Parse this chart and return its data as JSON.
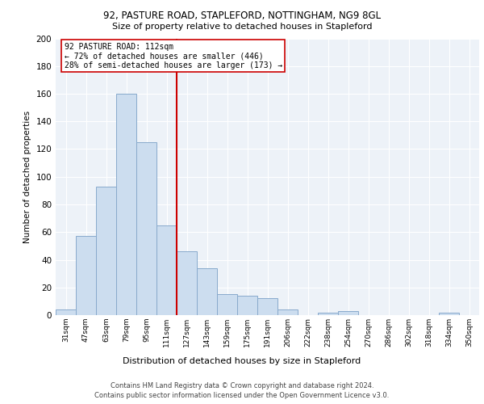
{
  "title1": "92, PASTURE ROAD, STAPLEFORD, NOTTINGHAM, NG9 8GL",
  "title2": "Size of property relative to detached houses in Stapleford",
  "xlabel": "Distribution of detached houses by size in Stapleford",
  "ylabel": "Number of detached properties",
  "footnote1": "Contains HM Land Registry data © Crown copyright and database right 2024.",
  "footnote2": "Contains public sector information licensed under the Open Government Licence v3.0.",
  "annotation_line1": "92 PASTURE ROAD: 112sqm",
  "annotation_line2": "← 72% of detached houses are smaller (446)",
  "annotation_line3": "28% of semi-detached houses are larger (173) →",
  "bar_labels": [
    "31sqm",
    "47sqm",
    "63sqm",
    "79sqm",
    "95sqm",
    "111sqm",
    "127sqm",
    "143sqm",
    "159sqm",
    "175sqm",
    "191sqm",
    "206sqm",
    "222sqm",
    "238sqm",
    "254sqm",
    "270sqm",
    "286sqm",
    "302sqm",
    "318sqm",
    "334sqm",
    "350sqm"
  ],
  "bar_values": [
    4,
    57,
    93,
    160,
    125,
    65,
    46,
    34,
    15,
    14,
    12,
    4,
    0,
    2,
    3,
    0,
    0,
    0,
    0,
    2,
    0
  ],
  "bar_color": "#ccddef",
  "bar_edge_color": "#88aacc",
  "vline_color": "#cc0000",
  "vline_x": 5,
  "box_color": "#cc0000",
  "bg_color": "#edf2f8",
  "ylim": [
    0,
    200
  ],
  "yticks": [
    0,
    20,
    40,
    60,
    80,
    100,
    120,
    140,
    160,
    180,
    200
  ]
}
